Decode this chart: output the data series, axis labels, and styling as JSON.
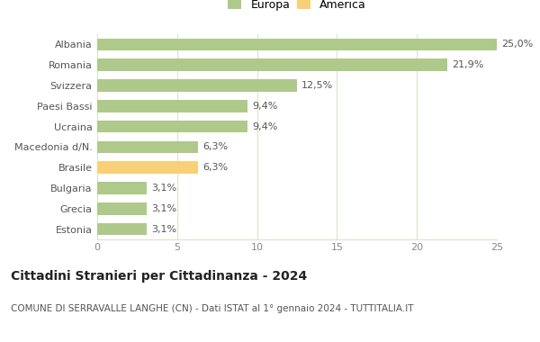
{
  "categories": [
    "Estonia",
    "Grecia",
    "Bulgaria",
    "Brasile",
    "Macedonia d/N.",
    "Ucraina",
    "Paesi Bassi",
    "Svizzera",
    "Romania",
    "Albania"
  ],
  "values": [
    3.1,
    3.1,
    3.1,
    6.3,
    6.3,
    9.4,
    9.4,
    12.5,
    21.9,
    25.0
  ],
  "labels": [
    "3,1%",
    "3,1%",
    "3,1%",
    "6,3%",
    "6,3%",
    "9,4%",
    "9,4%",
    "12,5%",
    "21,9%",
    "25,0%"
  ],
  "colors": [
    "#aec98a",
    "#aec98a",
    "#aec98a",
    "#f9d077",
    "#aec98a",
    "#aec98a",
    "#aec98a",
    "#aec98a",
    "#aec98a",
    "#aec98a"
  ],
  "legend": [
    {
      "label": "Europa",
      "color": "#aec98a"
    },
    {
      "label": "America",
      "color": "#f9d077"
    }
  ],
  "xlim": [
    0,
    25
  ],
  "xticks": [
    0,
    5,
    10,
    15,
    20,
    25
  ],
  "title": "Cittadini Stranieri per Cittadinanza - 2024",
  "subtitle": "COMUNE DI SERRAVALLE LANGHE (CN) - Dati ISTAT al 1° gennaio 2024 - TUTTITALIA.IT",
  "title_fontsize": 10,
  "subtitle_fontsize": 7.5,
  "bar_height": 0.6,
  "background_color": "#ffffff",
  "grid_color": "#d8e4c8",
  "label_fontsize": 8,
  "tick_fontsize": 8,
  "ytick_fontsize": 8
}
